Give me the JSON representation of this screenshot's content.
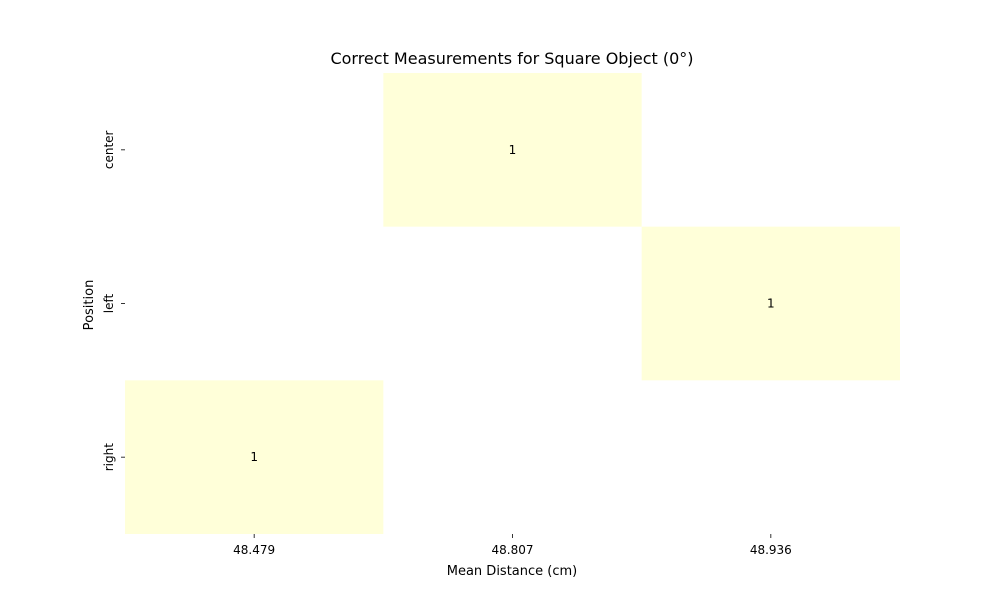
{
  "chart_data": {
    "type": "heatmap",
    "title": "Correct Measurements for Square Object (0°)",
    "xlabel": "Mean Distance (cm)",
    "ylabel": "Position",
    "x_categories": [
      "48.479",
      "48.807",
      "48.936"
    ],
    "y_categories": [
      "center",
      "left",
      "right"
    ],
    "cells": [
      {
        "x": "48.807",
        "y": "center",
        "value": 1
      },
      {
        "x": "48.936",
        "y": "left",
        "value": 1
      },
      {
        "x": "48.479",
        "y": "right",
        "value": 1
      }
    ],
    "cell_color": "#ffffd9",
    "colorbar": false
  }
}
